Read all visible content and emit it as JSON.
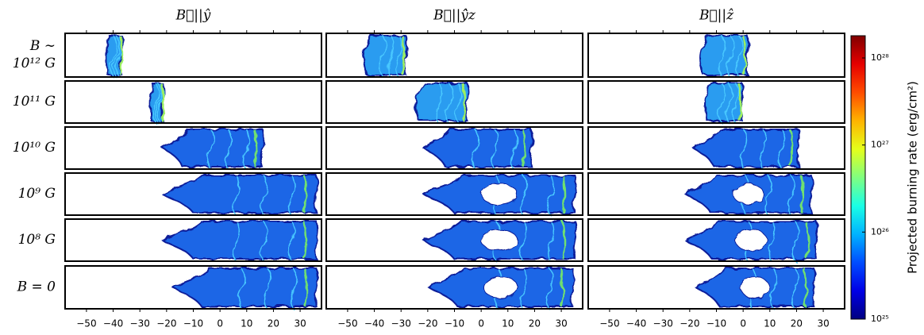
{
  "chart_data": {
    "type": "panel-grid",
    "columns": [
      "B⃗||ŷ",
      "B⃗||ŷ̂z",
      "B⃗||ẑ"
    ],
    "rows": [
      [
        "B ∼",
        "10¹² G"
      ],
      [
        "10¹¹ G"
      ],
      [
        "10¹⁰ G"
      ],
      [
        "10⁹ G"
      ],
      [
        "10⁸ G"
      ],
      [
        "B = 0"
      ]
    ],
    "xlim": [
      -58,
      38
    ],
    "xticks": [
      {
        "value": -50,
        "label": "−50"
      },
      {
        "value": -40,
        "label": "−40"
      },
      {
        "value": -30,
        "label": "−30"
      },
      {
        "value": -20,
        "label": "−20"
      },
      {
        "value": -10,
        "label": "−10"
      },
      0,
      10,
      20,
      30
    ],
    "colorbar": {
      "label": "Projected burning rate (erg/cm²)",
      "colormap": "jet",
      "log_scale": true,
      "clim": [
        1e+25,
        1.8e+28
      ],
      "ticks": [
        {
          "value": 1e+25,
          "label": "10²⁵"
        },
        {
          "value": 1e+26,
          "label": "10²⁶"
        },
        {
          "value": 1e+27,
          "label": "10²⁷"
        },
        {
          "value": 1e+28,
          "label": "10²⁸"
        }
      ]
    }
  }
}
